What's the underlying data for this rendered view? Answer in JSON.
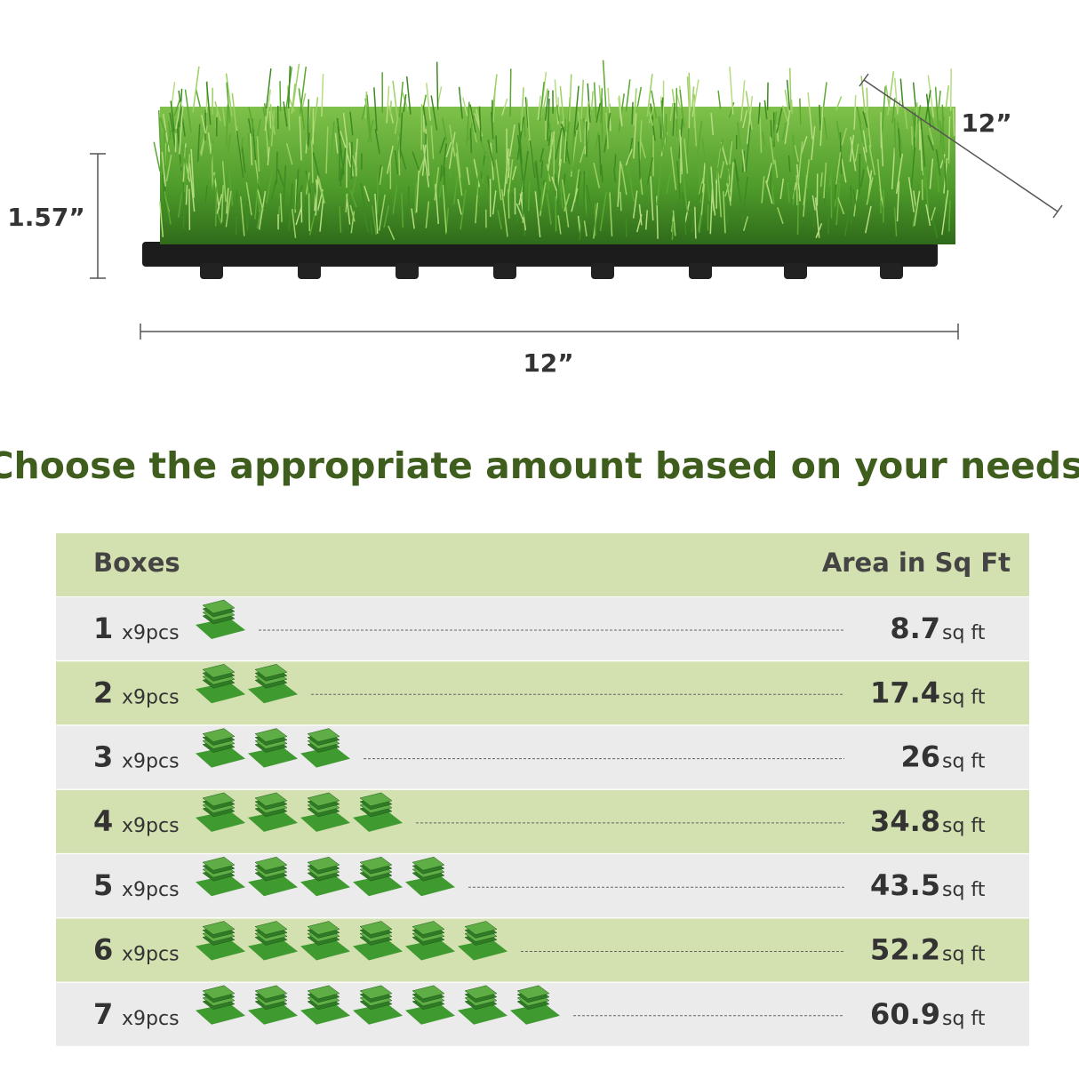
{
  "dimensions": {
    "height": "1.57”",
    "width": "12”",
    "depth": "12”"
  },
  "heading": "Choose the appropriate amount based on your needs",
  "table": {
    "headers": [
      "Boxes",
      "Area in Sq Ft"
    ],
    "pieces": "x9pcs",
    "unit": "sq ft",
    "rows": [
      {
        "boxes": 1,
        "area": 8.7
      },
      {
        "boxes": 2,
        "area": 17.4
      },
      {
        "boxes": 3,
        "area": 26
      },
      {
        "boxes": 4,
        "area": 34.8
      },
      {
        "boxes": 5,
        "area": 43.5
      },
      {
        "boxes": 6,
        "area": 52.2
      },
      {
        "boxes": 7,
        "area": 60.9
      }
    ]
  }
}
